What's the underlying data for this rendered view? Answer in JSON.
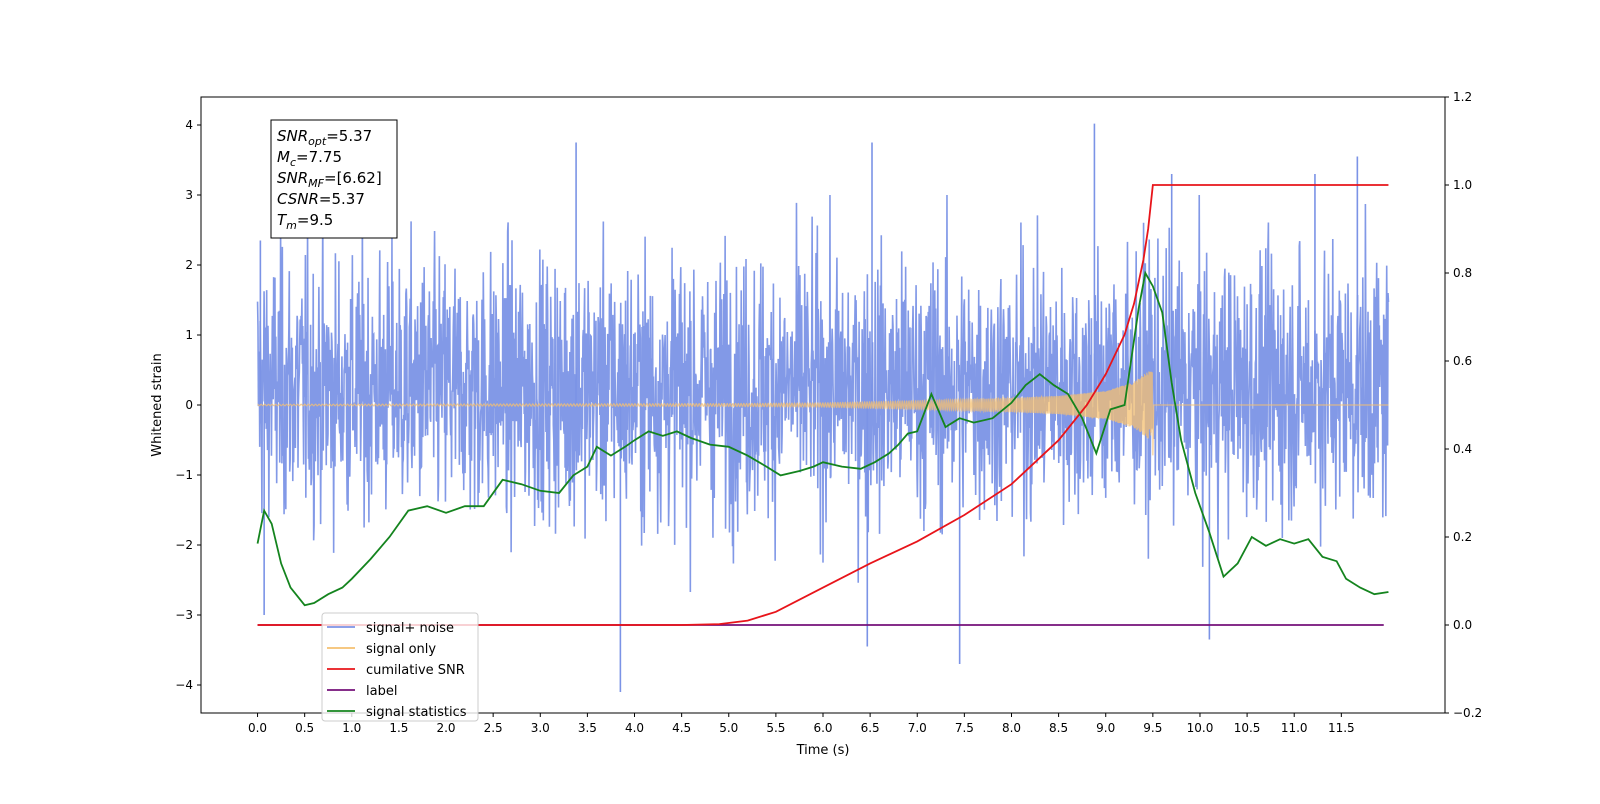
{
  "chart_data": {
    "type": "line",
    "xlabel": "Time (s)",
    "ylabel_left": "Whitened strain",
    "xlim": [
      -0.6,
      12.6
    ],
    "ylim_left": [
      -4.4,
      4.4
    ],
    "ylim_right": [
      -0.2,
      1.2
    ],
    "x_ticks": [
      "0.0",
      "0.5",
      "1.0",
      "1.5",
      "2.0",
      "2.5",
      "3.0",
      "3.5",
      "4.0",
      "4.5",
      "5.0",
      "5.5",
      "6.0",
      "6.5",
      "7.0",
      "7.5",
      "8.0",
      "8.5",
      "9.0",
      "9.5",
      "10.0",
      "10.5",
      "11.0",
      "11.5"
    ],
    "y_left_ticks": [
      "4",
      "3",
      "2",
      "1",
      "0",
      "−1",
      "−2",
      "−3",
      "−4"
    ],
    "y_right_ticks": [
      "1.2",
      "1.0",
      "0.8",
      "0.6",
      "0.4",
      "0.2",
      "0.0",
      "−0.2"
    ],
    "annotation_lines": [
      {
        "base": "SNR",
        "sub": "opt",
        "value": "=5.37"
      },
      {
        "base": "M",
        "sub": "c",
        "value": "=7.75"
      },
      {
        "base": "SNR",
        "sub": "MF",
        "value": "=[6.62]"
      },
      {
        "base": "CSNR",
        "sub": "",
        "value": "=5.37"
      },
      {
        "base": "T",
        "sub": "m",
        "value": "=9.5"
      }
    ],
    "legend": {
      "location": "lower-left",
      "entries": [
        {
          "label": "signal+ noise",
          "color": "#7b93e6"
        },
        {
          "label": "signal only",
          "color": "#f5c070"
        },
        {
          "label": "cumilative SNR",
          "color": "#e8141a"
        },
        {
          "label": "label",
          "color": "#74107a"
        },
        {
          "label": "signal statistics",
          "color": "#14841e"
        }
      ]
    },
    "series": [
      {
        "name": "signal+ noise",
        "axis": "left",
        "color": "#7b93e6",
        "x_range": [
          0.0,
          12.0
        ],
        "envelope_typical": [
          -1.6,
          2.1
        ],
        "spikes": [
          {
            "x": 0.03,
            "y": 2.35
          },
          {
            "x": 0.07,
            "y": -3.0
          },
          {
            "x": 3.38,
            "y": 3.75
          },
          {
            "x": 3.85,
            "y": -4.1
          },
          {
            "x": 6.52,
            "y": 3.75
          },
          {
            "x": 6.47,
            "y": -3.45
          },
          {
            "x": 7.45,
            "y": -3.7
          },
          {
            "x": 8.88,
            "y": 4.02
          },
          {
            "x": 9.7,
            "y": 3.3
          },
          {
            "x": 10.1,
            "y": -3.35
          },
          {
            "x": 11.22,
            "y": 3.3
          },
          {
            "x": 11.67,
            "y": 3.55
          }
        ]
      },
      {
        "name": "signal only",
        "axis": "left",
        "color": "#f5c070",
        "chirp_end": 9.5,
        "envelope": [
          [
            0,
            0.01
          ],
          [
            5.0,
            0.02
          ],
          [
            6.0,
            0.03
          ],
          [
            7.0,
            0.06
          ],
          [
            7.5,
            0.08
          ],
          [
            8.0,
            0.1
          ],
          [
            8.5,
            0.13
          ],
          [
            9.0,
            0.2
          ],
          [
            9.3,
            0.33
          ],
          [
            9.45,
            0.48
          ],
          [
            9.5,
            0.48
          ]
        ]
      },
      {
        "name": "cumilative SNR",
        "axis": "right",
        "color": "#e8141a",
        "points": [
          [
            0,
            0
          ],
          [
            4.5,
            0
          ],
          [
            4.9,
            0.002
          ],
          [
            5.2,
            0.01
          ],
          [
            5.5,
            0.03
          ],
          [
            6.0,
            0.085
          ],
          [
            6.5,
            0.14
          ],
          [
            7.0,
            0.19
          ],
          [
            7.5,
            0.25
          ],
          [
            8.0,
            0.32
          ],
          [
            8.5,
            0.42
          ],
          [
            8.8,
            0.5
          ],
          [
            9.0,
            0.57
          ],
          [
            9.2,
            0.66
          ],
          [
            9.3,
            0.73
          ],
          [
            9.4,
            0.83
          ],
          [
            9.45,
            0.9
          ],
          [
            9.5,
            1.0
          ],
          [
            12.0,
            1.0
          ]
        ]
      },
      {
        "name": "label",
        "axis": "right",
        "color": "#74107a",
        "points": [
          [
            0,
            0
          ],
          [
            11.95,
            0
          ]
        ]
      },
      {
        "name": "signal statistics",
        "axis": "right",
        "color": "#14841e",
        "points": [
          [
            0.0,
            0.185
          ],
          [
            0.07,
            0.26
          ],
          [
            0.15,
            0.23
          ],
          [
            0.25,
            0.14
          ],
          [
            0.35,
            0.085
          ],
          [
            0.5,
            0.045
          ],
          [
            0.6,
            0.05
          ],
          [
            0.75,
            0.07
          ],
          [
            0.9,
            0.085
          ],
          [
            1.0,
            0.105
          ],
          [
            1.2,
            0.15
          ],
          [
            1.4,
            0.2
          ],
          [
            1.6,
            0.26
          ],
          [
            1.8,
            0.27
          ],
          [
            2.0,
            0.255
          ],
          [
            2.2,
            0.27
          ],
          [
            2.4,
            0.27
          ],
          [
            2.6,
            0.33
          ],
          [
            2.8,
            0.32
          ],
          [
            3.0,
            0.305
          ],
          [
            3.2,
            0.3
          ],
          [
            3.35,
            0.34
          ],
          [
            3.5,
            0.36
          ],
          [
            3.6,
            0.405
          ],
          [
            3.75,
            0.385
          ],
          [
            3.9,
            0.405
          ],
          [
            4.0,
            0.42
          ],
          [
            4.15,
            0.44
          ],
          [
            4.3,
            0.43
          ],
          [
            4.45,
            0.44
          ],
          [
            4.6,
            0.425
          ],
          [
            4.8,
            0.41
          ],
          [
            5.0,
            0.405
          ],
          [
            5.2,
            0.385
          ],
          [
            5.4,
            0.36
          ],
          [
            5.55,
            0.34
          ],
          [
            5.75,
            0.35
          ],
          [
            5.9,
            0.36
          ],
          [
            6.0,
            0.37
          ],
          [
            6.2,
            0.36
          ],
          [
            6.4,
            0.355
          ],
          [
            6.55,
            0.37
          ],
          [
            6.7,
            0.39
          ],
          [
            6.8,
            0.41
          ],
          [
            6.9,
            0.435
          ],
          [
            7.0,
            0.44
          ],
          [
            7.15,
            0.525
          ],
          [
            7.3,
            0.45
          ],
          [
            7.45,
            0.47
          ],
          [
            7.6,
            0.46
          ],
          [
            7.8,
            0.47
          ],
          [
            8.0,
            0.505
          ],
          [
            8.15,
            0.545
          ],
          [
            8.3,
            0.57
          ],
          [
            8.45,
            0.545
          ],
          [
            8.6,
            0.525
          ],
          [
            8.75,
            0.47
          ],
          [
            8.9,
            0.39
          ],
          [
            9.05,
            0.49
          ],
          [
            9.2,
            0.5
          ],
          [
            9.35,
            0.72
          ],
          [
            9.42,
            0.8
          ],
          [
            9.5,
            0.77
          ],
          [
            9.6,
            0.71
          ],
          [
            9.7,
            0.55
          ],
          [
            9.8,
            0.42
          ],
          [
            9.95,
            0.3
          ],
          [
            10.1,
            0.21
          ],
          [
            10.25,
            0.11
          ],
          [
            10.4,
            0.14
          ],
          [
            10.55,
            0.2
          ],
          [
            10.7,
            0.18
          ],
          [
            10.85,
            0.195
          ],
          [
            11.0,
            0.185
          ],
          [
            11.15,
            0.195
          ],
          [
            11.3,
            0.155
          ],
          [
            11.45,
            0.145
          ],
          [
            11.55,
            0.105
          ],
          [
            11.7,
            0.085
          ],
          [
            11.85,
            0.07
          ],
          [
            12.0,
            0.075
          ]
        ]
      }
    ]
  }
}
